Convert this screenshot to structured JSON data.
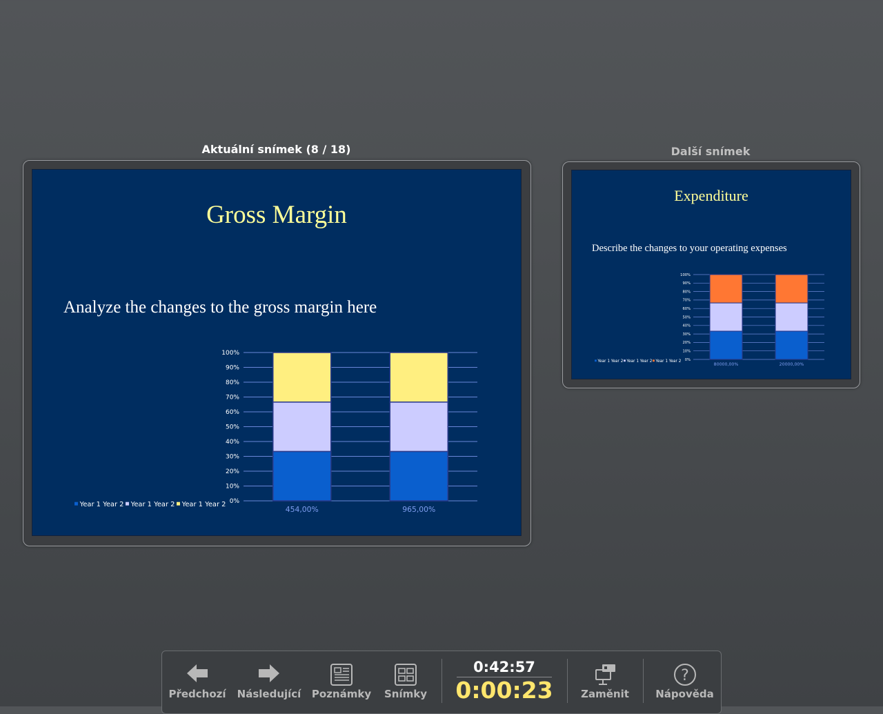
{
  "current_slide": {
    "header": "Aktuální snímek (8 / 18)",
    "title": "Gross Margin",
    "body": "Analyze the changes to the gross margin here",
    "chart_data": {
      "type": "bar",
      "stacked": "percent",
      "categories": [
        "454,00%",
        "965,00%"
      ],
      "series": [
        {
          "name": "Year 1 Year 2",
          "values": [
            33.3,
            33.3
          ],
          "color": "#0a5fce"
        },
        {
          "name": "Year 1 Year 2",
          "values": [
            33.3,
            33.3
          ],
          "color": "#ccccff"
        },
        {
          "name": "Year 1 Year 2",
          "values": [
            33.4,
            33.4
          ],
          "color": "#ffef80"
        }
      ],
      "yticks": [
        "0%",
        "10%",
        "20%",
        "30%",
        "40%",
        "50%",
        "60%",
        "70%",
        "80%",
        "90%",
        "100%"
      ],
      "ylim": [
        0,
        100
      ],
      "grid": true,
      "legend": "bottom-left"
    }
  },
  "next_slide": {
    "header": "Další snímek",
    "title": "Expenditure",
    "body": "Describe the changes to your operating expenses",
    "chart_data": {
      "type": "bar",
      "stacked": "percent",
      "categories": [
        "80000,00%",
        "20000,00%"
      ],
      "series": [
        {
          "name": "Year 1 Year 2",
          "values": [
            33.3,
            33.3
          ],
          "color": "#0a5fce"
        },
        {
          "name": "Year 1 Year 2",
          "values": [
            33.3,
            33.3
          ],
          "color": "#ccccff"
        },
        {
          "name": "Year 1 Year 2",
          "values": [
            33.4,
            33.4
          ],
          "color": "#ff7733"
        }
      ],
      "yticks": [
        "0%",
        "10%",
        "20%",
        "30%",
        "40%",
        "50%",
        "60%",
        "70%",
        "80%",
        "90%",
        "100%"
      ],
      "ylim": [
        0,
        100
      ],
      "grid": true,
      "legend": "bottom-left"
    }
  },
  "toolbar": {
    "prev_label": "Předchozí",
    "next_label": "Následující",
    "notes_label": "Poznámky",
    "slides_label": "Snímky",
    "clock": "0:42:57",
    "elapsed": "0:00:23",
    "swap_label": "Zaměnit",
    "help_label": "Nápověda"
  },
  "icons": {
    "prev": "arrow-left-icon",
    "next": "arrow-right-icon",
    "notes": "notes-icon",
    "slides": "slides-grid-icon",
    "swap": "swap-monitors-icon",
    "help": "help-icon"
  }
}
